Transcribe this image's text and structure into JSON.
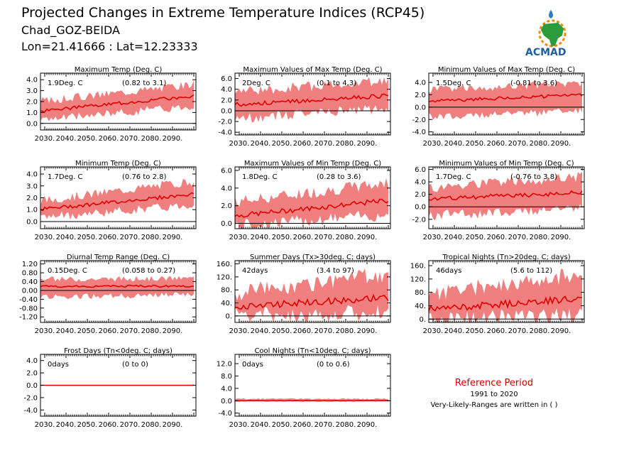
{
  "header": {
    "title": "Projected Changes in Extreme Temperature Indices (RCP45)",
    "station": "Chad_GOZ-BEIDA",
    "coords": "Lon=21.41666 : Lat=12.23333",
    "logo_text": "ACMAD"
  },
  "reference": {
    "title": "Reference Period",
    "period": "1991 to 2020",
    "note": "Very-Likely-Ranges are written in ( )"
  },
  "colors": {
    "band": "#f08080",
    "line": "#e00000",
    "ref_title": "#cc0000",
    "logo_text": "#1f5fa0",
    "logo_green": "#2e9b3a",
    "logo_orange": "#f08a00",
    "logo_blue": "#2f7fc1"
  },
  "chart_data": [
    {
      "type": "line",
      "title": "Maximum Temp (Deg. C)",
      "median_text": "1.9Deg. C",
      "range_text": "(0.82 to 3.1)",
      "xlim": [
        2028,
        2101
      ],
      "ylim": [
        -0.6,
        4.6
      ],
      "yticks": [
        0.0,
        1.0,
        2.0,
        3.0,
        4.0
      ],
      "ytick_labels": [
        "0.0",
        "1.0",
        "2.0",
        "3.0",
        "4.0"
      ],
      "x_start": 2026,
      "x_end": 2100,
      "median_start": 1.1,
      "median_end": 2.5,
      "lower_start": 0.3,
      "lower_end": 1.6,
      "upper_start": 2.0,
      "upper_end": 3.6,
      "zero_line": 0
    },
    {
      "type": "line",
      "title": "Maximum Values of Max Temp (Deg. C)",
      "median_text": "2Deg. C",
      "range_text": "(0.1 to 4.3)",
      "xlim": [
        2028,
        2101
      ],
      "ylim": [
        -4.5,
        7.0
      ],
      "yticks": [
        -4.0,
        -2.0,
        0.0,
        2.0,
        4.0,
        6.0
      ],
      "ytick_labels": [
        "-4.0",
        "-2.0",
        "0.0",
        "2.0",
        "4.0",
        "6.0"
      ],
      "x_start": 2026,
      "x_end": 2100,
      "median_start": 1.1,
      "median_end": 2.8,
      "lower_start": -1.5,
      "lower_end": 0.4,
      "upper_start": 3.5,
      "upper_end": 5.6,
      "zero_line": 0
    },
    {
      "type": "line",
      "title": "Minimum Values of Max Temp (Deg. C)",
      "median_text": "1.5Deg. C",
      "range_text": "(-0.81 to 3.6)",
      "xlim": [
        2028,
        2101
      ],
      "ylim": [
        -4.5,
        5.5
      ],
      "yticks": [
        -4.0,
        -2.0,
        0.0,
        2.0,
        4.0
      ],
      "ytick_labels": [
        "-4.0",
        "-2.0",
        "0.0",
        "2.0",
        "4.0"
      ],
      "x_start": 2026,
      "x_end": 2100,
      "median_start": 0.9,
      "median_end": 2.0,
      "lower_start": -1.6,
      "lower_end": -0.6,
      "upper_start": 2.8,
      "upper_end": 3.9,
      "zero_line": 0
    },
    {
      "type": "line",
      "title": "Minimum Temp (Deg. C)",
      "median_text": "1.7Deg. C",
      "range_text": "(0.76 to 2.8)",
      "xlim": [
        2028,
        2101
      ],
      "ylim": [
        -0.6,
        4.6
      ],
      "yticks": [
        0.0,
        1.0,
        2.0,
        3.0,
        4.0
      ],
      "ytick_labels": [
        "0.0",
        "1.0",
        "2.0",
        "3.0",
        "4.0"
      ],
      "x_start": 2026,
      "x_end": 2100,
      "median_start": 1.0,
      "median_end": 2.3,
      "lower_start": 0.3,
      "lower_end": 1.4,
      "upper_start": 1.7,
      "upper_end": 3.4,
      "zero_line": 0
    },
    {
      "type": "line",
      "title": "Maximum Values of Min Temp (Deg. C)",
      "median_text": "1.8Deg. C",
      "range_text": "(0.28 to 3.6)",
      "xlim": [
        2028,
        2101
      ],
      "ylim": [
        -0.6,
        6.4
      ],
      "yticks": [
        0.0,
        2.0,
        4.0,
        6.0
      ],
      "ytick_labels": [
        "0.0",
        "2.0",
        "4.0",
        "6.0"
      ],
      "x_start": 2026,
      "x_end": 2100,
      "median_start": 0.8,
      "median_end": 2.6,
      "lower_start": -0.3,
      "lower_end": 1.0,
      "upper_start": 2.4,
      "upper_end": 4.6,
      "zero_line": 0
    },
    {
      "type": "line",
      "title": "Minimum Values of Min Temp (Deg. C)",
      "median_text": "1.7Deg. C",
      "range_text": "(-0.76 to 3.8)",
      "xlim": [
        2028,
        2101
      ],
      "ylim": [
        -3.5,
        6.4
      ],
      "yticks": [
        -2.0,
        0.0,
        2.0,
        4.0,
        6.0
      ],
      "ytick_labels": [
        "-2.0",
        "0.0",
        "2.0",
        "4.0",
        "6.0"
      ],
      "x_start": 2026,
      "x_end": 2100,
      "median_start": 1.2,
      "median_end": 2.3,
      "lower_start": -1.4,
      "lower_end": -0.3,
      "upper_start": 3.0,
      "upper_end": 4.8,
      "zero_line": 0
    },
    {
      "type": "line",
      "title": "Diurnal Temp Range (Deg. C)",
      "median_text": "0.15Deg. C",
      "range_text": "(0.058 to 0.27)",
      "xlim": [
        2028,
        2101
      ],
      "ylim": [
        -1.45,
        1.35
      ],
      "yticks": [
        -1.2,
        -0.8,
        -0.4,
        0.0,
        0.4,
        0.8,
        1.2
      ],
      "ytick_labels": [
        "-1.20",
        "-0.80",
        "-0.40",
        "0.00",
        "0.40",
        "0.80",
        "1.20"
      ],
      "x_start": 2026,
      "x_end": 2100,
      "median_start": 0.18,
      "median_end": 0.2,
      "lower_start": -0.3,
      "lower_end": -0.2,
      "upper_start": 0.5,
      "upper_end": 0.55,
      "zero_line": 0
    },
    {
      "type": "line",
      "title": "Summer Days (Tx>30deg. C; days)",
      "median_text": "42days",
      "range_text": "(3.4 to 97)",
      "xlim": [
        2028,
        2101
      ],
      "ylim": [
        -20,
        170
      ],
      "yticks": [
        0,
        40,
        80,
        120,
        160
      ],
      "ytick_labels": [
        "0.",
        "40.",
        "80.",
        "120.",
        "160."
      ],
      "x_start": 2026,
      "x_end": 2100,
      "median_start": 28,
      "median_end": 56,
      "lower_start": 0,
      "lower_end": 10,
      "upper_start": 70,
      "upper_end": 130,
      "zero_line": 0
    },
    {
      "type": "line",
      "title": "Tropical Nights (Tn>20deg. C; days)",
      "median_text": "46days",
      "range_text": "(5.6 to 112)",
      "xlim": [
        2028,
        2101
      ],
      "ylim": [
        -10,
        175
      ],
      "yticks": [
        0,
        40,
        80,
        120,
        160
      ],
      "ytick_labels": [
        "0.",
        "40.",
        "80.",
        "120.",
        "160."
      ],
      "x_start": 2026,
      "x_end": 2100,
      "median_start": 28,
      "median_end": 62,
      "lower_start": 0,
      "lower_end": 10,
      "upper_start": 75,
      "upper_end": 135,
      "zero_line": 0
    },
    {
      "type": "line",
      "title": "Frost Days (Tn<0deg. C; days)",
      "median_text": "0days",
      "range_text": "(0 to 0)",
      "xlim": [
        2028,
        2101
      ],
      "ylim": [
        -5.0,
        5.0
      ],
      "yticks": [
        -4.0,
        -2.0,
        0.0,
        2.0,
        4.0
      ],
      "ytick_labels": [
        "-4.0",
        "-2.0",
        "0.0",
        "2.0",
        "4.0"
      ],
      "x_start": 2026,
      "x_end": 2100,
      "median_start": 0,
      "median_end": 0,
      "lower_start": 0,
      "lower_end": 0,
      "upper_start": 0,
      "upper_end": 0,
      "zero_line": 0
    },
    {
      "type": "line",
      "title": "Cool Nights (Tn<10deg. C; days)",
      "median_text": "0days",
      "range_text": "(0 to 0.6)",
      "xlim": [
        2028,
        2101
      ],
      "ylim": [
        -5.0,
        15.0
      ],
      "yticks": [
        -4.0,
        0.0,
        4.0,
        8.0,
        12.0
      ],
      "ytick_labels": [
        "-4.0",
        "0.0",
        "4.0",
        "8.0",
        "12.0"
      ],
      "x_start": 2026,
      "x_end": 2100,
      "median_start": 0,
      "median_end": 0,
      "lower_start": 0,
      "lower_end": 0,
      "upper_start": 0.6,
      "upper_end": 0.6,
      "zero_line": 0
    }
  ],
  "xtick_values": [
    2030,
    2040,
    2050,
    2060,
    2070,
    2080,
    2090
  ],
  "xtick_labels": [
    "2030.",
    "2040.",
    "2050.",
    "2060.",
    "2070.",
    "2080.",
    "2090."
  ]
}
